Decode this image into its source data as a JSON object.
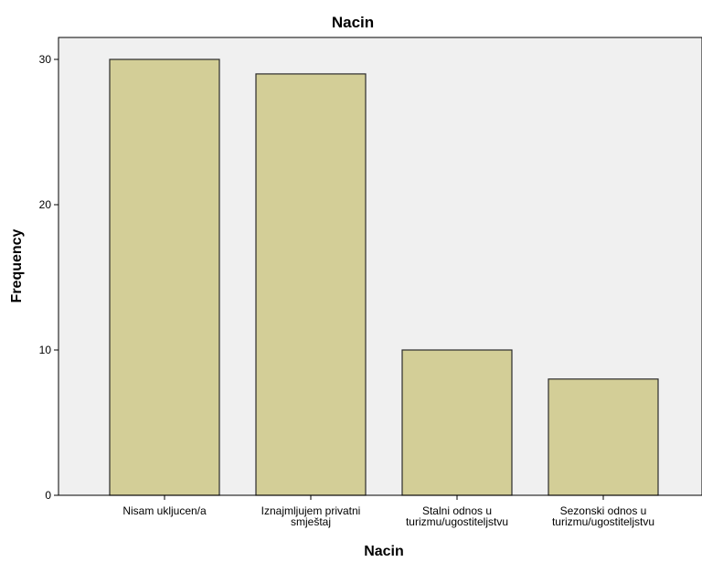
{
  "chart_data": {
    "type": "bar",
    "title": "Nacin",
    "xlabel": "Nacin",
    "ylabel": "Frequency",
    "categories": [
      [
        "Nisam ukljucen/a"
      ],
      [
        "Iznajmljujem privatni",
        "smještaj"
      ],
      [
        "Stalni odnos u",
        "turizmu/ugostiteljstvu"
      ],
      [
        "Sezonski odnos u",
        "turizmu/ugostiteljstvu"
      ]
    ],
    "values": [
      30,
      29,
      10,
      8
    ],
    "ylim": [
      0,
      30
    ],
    "yticks": [
      0,
      10,
      20,
      30
    ],
    "grid": false,
    "legend": "none",
    "colors": {
      "bar_fill": "#d3ce97",
      "bar_stroke": "#2b2b2b",
      "plot_bg": "#f0f0f0",
      "plot_border": "#000000"
    }
  }
}
